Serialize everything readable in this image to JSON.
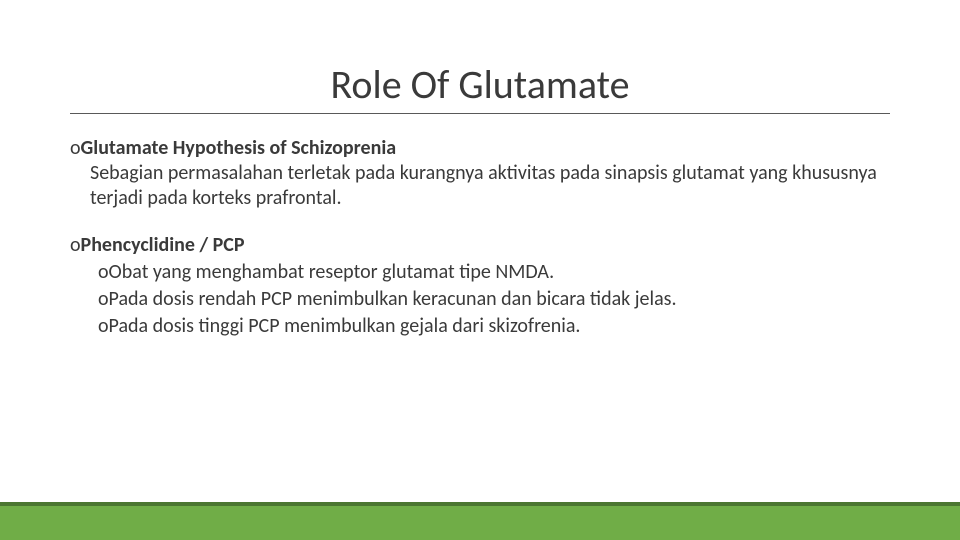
{
  "slide": {
    "title": "Role Of Glutamate",
    "title_fontsize": 40,
    "title_color": "#3a3a3a",
    "underline_color": "#595959",
    "body_fontsize": 20,
    "body_color": "#3a3a3a",
    "background_color": "#ffffff",
    "accent_bar_color": "#70ad47",
    "accent_bar_top_color": "#4b7631",
    "bullets": [
      {
        "marker": "o",
        "heading_bold": "Glutamate Hypothesis of Schizoprenia",
        "body": "Sebagian permasalahan terletak pada kurangnya aktivitas pada sinapsis glutamat yang khususnya terjadi pada korteks prafrontal."
      },
      {
        "marker": "o",
        "heading_bold": "Phencyclidine / PCP",
        "sub": [
          {
            "marker": "o",
            "text": "Obat yang menghambat reseptor glutamat tipe NMDA."
          },
          {
            "marker": "o",
            "text": "Pada dosis rendah PCP menimbulkan keracunan dan bicara tidak jelas."
          },
          {
            "marker": "o",
            "text": "Pada dosis tinggi  PCP menimbulkan gejala dari skizofrenia."
          }
        ]
      }
    ]
  }
}
